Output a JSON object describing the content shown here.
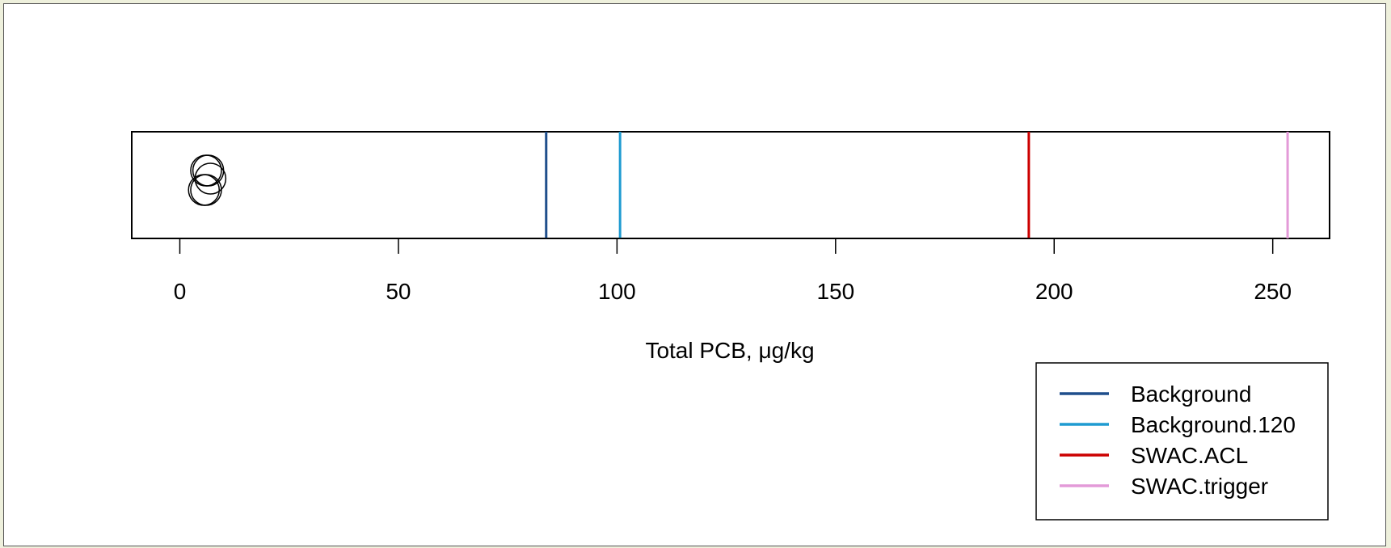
{
  "chart_data": {
    "type": "stripchart",
    "xlabel": "Total PCB, μg/kg",
    "xlim": [
      -11,
      263
    ],
    "x_ticks": [
      0,
      50,
      100,
      150,
      200,
      250
    ],
    "points": [
      {
        "x": 6,
        "jitter": "up"
      },
      {
        "x": 6.5,
        "jitter": "up"
      },
      {
        "x": 7,
        "jitter": "mid"
      },
      {
        "x": 6,
        "jitter": "down"
      },
      {
        "x": 5.5,
        "jitter": "down"
      }
    ],
    "reference_lines": [
      {
        "name": "Background",
        "x": 83.8,
        "color": "#1f4e8c"
      },
      {
        "name": "Background.120",
        "x": 100.7,
        "color": "#1f9bd1"
      },
      {
        "name": "SWAC.ACL",
        "x": 194.2,
        "color": "#cc0000"
      },
      {
        "name": "SWAC.trigger",
        "x": 253.4,
        "color": "#e39ad8"
      }
    ],
    "legend": {
      "position": "bottom-right",
      "entries": [
        "Background",
        "Background.120",
        "SWAC.ACL",
        "SWAC.trigger"
      ]
    }
  }
}
